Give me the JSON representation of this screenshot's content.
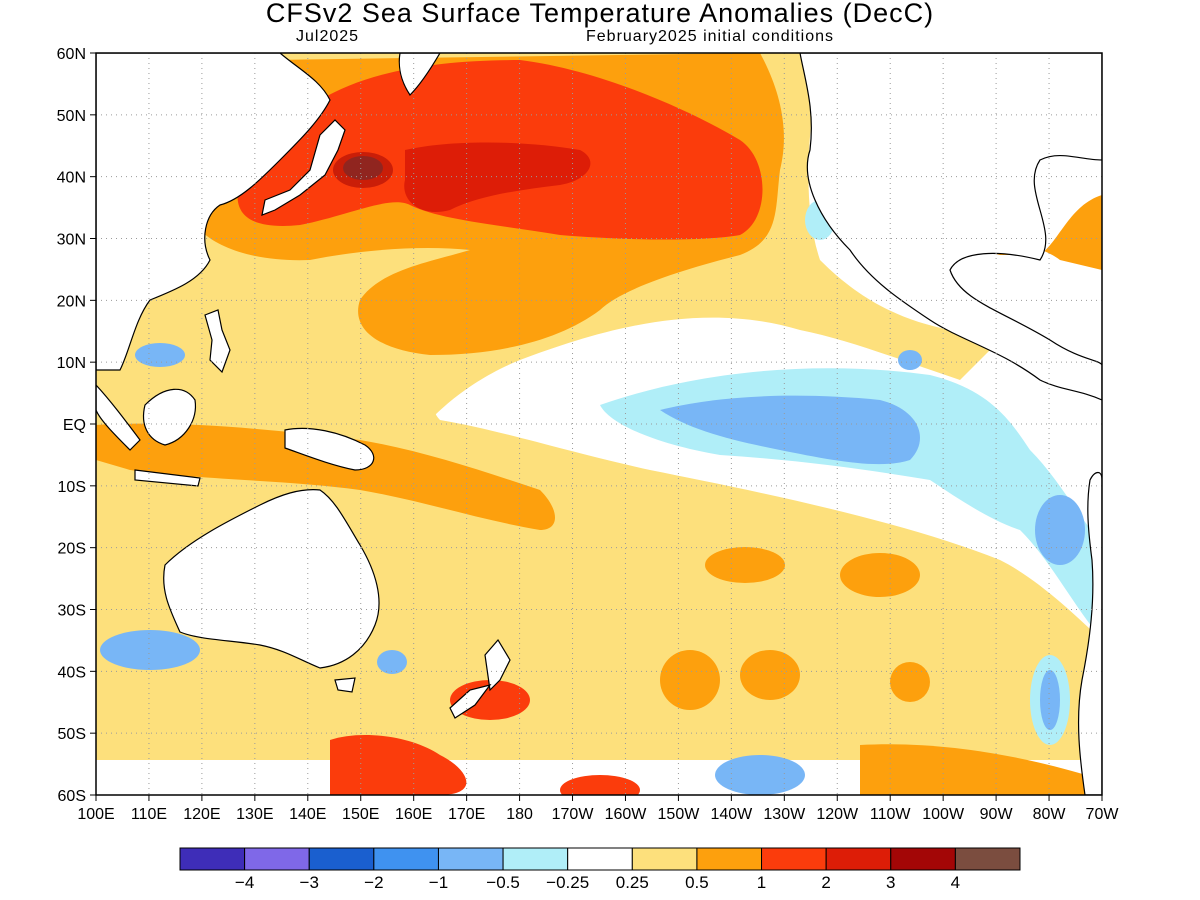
{
  "title": "CFSv2 Sea Surface Temperature Anomalies (DecC)",
  "valid_month": "Jul2025",
  "initial_conditions": "February2025 initial conditions",
  "lat_labels": [
    "60N",
    "50N",
    "40N",
    "30N",
    "20N",
    "10N",
    "EQ",
    "10S",
    "20S",
    "30S",
    "40S",
    "50S",
    "60S"
  ],
  "lon_labels": [
    "100E",
    "110E",
    "120E",
    "130E",
    "140E",
    "150E",
    "160E",
    "170E",
    "180",
    "170W",
    "160W",
    "150W",
    "140W",
    "130W",
    "120W",
    "110W",
    "100W",
    "90W",
    "80W",
    "70W"
  ],
  "colorbar": {
    "colors": [
      "#3e2db8",
      "#7f68e8",
      "#1a5fcf",
      "#3f92f0",
      "#78b6f6",
      "#b0eef8",
      "#ffffff",
      "#fde07c",
      "#fda00d",
      "#fb3c0c",
      "#dd1d07",
      "#a30606",
      "#7b4d3f"
    ],
    "labels": [
      "−4",
      "−3",
      "−2",
      "−1",
      "−0.5",
      "−0.25",
      "0.25",
      "0.5",
      "1",
      "2",
      "3",
      "4"
    ]
  },
  "colors": {
    "frame": "#000000",
    "coast": "#000000",
    "grid": "#9a9a9a"
  }
}
